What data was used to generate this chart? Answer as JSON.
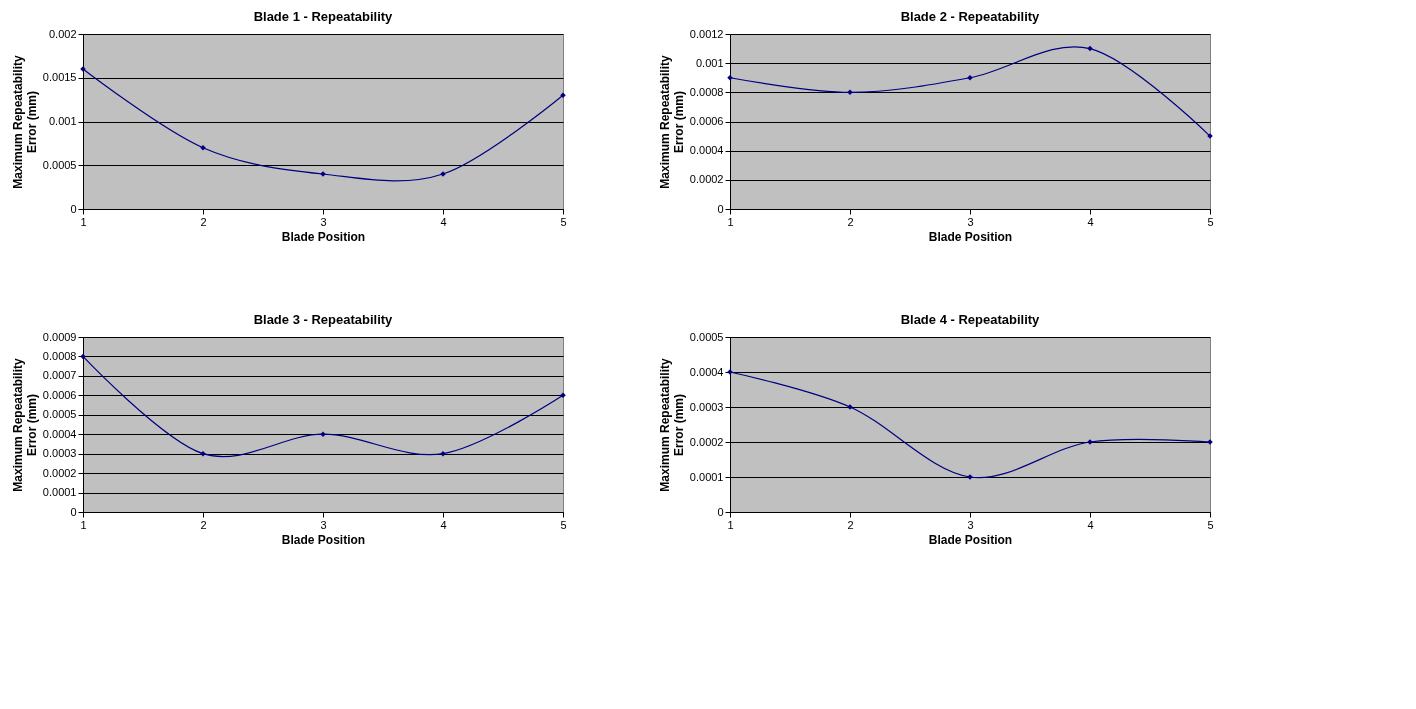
{
  "chart_data": [
    {
      "type": "line",
      "title": "Blade 1 - Repeatability",
      "xlabel": "Blade Position",
      "ylabel": "Maximum Repeatability\nError (mm)",
      "x": [
        1,
        2,
        3,
        4,
        5
      ],
      "values": [
        0.0016,
        0.0007,
        0.0004,
        0.0004,
        0.0013
      ],
      "color": "#000080",
      "xlim": [
        1,
        5
      ],
      "xticks": [
        1,
        2,
        3,
        4,
        5
      ],
      "ylim": [
        0,
        0.002
      ],
      "yticks": [
        0,
        0.0005,
        0.001,
        0.0015,
        0.002
      ],
      "grid": "y",
      "marker": "diamond"
    },
    {
      "type": "line",
      "title": "Blade 2 - Repeatability",
      "xlabel": "Blade Position",
      "ylabel": "Maximum Repeatability\nError (mm)",
      "x": [
        1,
        2,
        3,
        4,
        5
      ],
      "values": [
        0.0009,
        0.0008,
        0.0009,
        0.0011,
        0.0005
      ],
      "color": "#000080",
      "xlim": [
        1,
        5
      ],
      "xticks": [
        1,
        2,
        3,
        4,
        5
      ],
      "ylim": [
        0,
        0.0012
      ],
      "yticks": [
        0,
        0.0002,
        0.0004,
        0.0006,
        0.0008,
        0.001,
        0.0012
      ],
      "grid": "y",
      "marker": "diamond"
    },
    {
      "type": "line",
      "title": "Blade 3 - Repeatability",
      "xlabel": "Blade Position",
      "ylabel": "Maximum Repeatability\nError (mm)",
      "x": [
        1,
        2,
        3,
        4,
        5
      ],
      "values": [
        0.0008,
        0.0003,
        0.0004,
        0.0003,
        0.0006
      ],
      "color": "#000080",
      "xlim": [
        1,
        5
      ],
      "xticks": [
        1,
        2,
        3,
        4,
        5
      ],
      "ylim": [
        0,
        0.0009
      ],
      "yticks": [
        0,
        0.0001,
        0.0002,
        0.0003,
        0.0004,
        0.0005,
        0.0006,
        0.0007,
        0.0008,
        0.0009
      ],
      "grid": "y",
      "marker": "diamond"
    },
    {
      "type": "line",
      "title": "Blade 4 - Repeatability",
      "xlabel": "Blade Position",
      "ylabel": "Maximum Repeatability\nError (mm)",
      "x": [
        1,
        2,
        3,
        4,
        5
      ],
      "values": [
        0.0004,
        0.0003,
        0.0001,
        0.0002,
        0.0002
      ],
      "color": "#000080",
      "xlim": [
        1,
        5
      ],
      "xticks": [
        1,
        2,
        3,
        4,
        5
      ],
      "ylim": [
        0,
        0.0005
      ],
      "yticks": [
        0,
        0.0001,
        0.0002,
        0.0003,
        0.0004,
        0.0005
      ],
      "grid": "y",
      "marker": "diamond"
    }
  ]
}
